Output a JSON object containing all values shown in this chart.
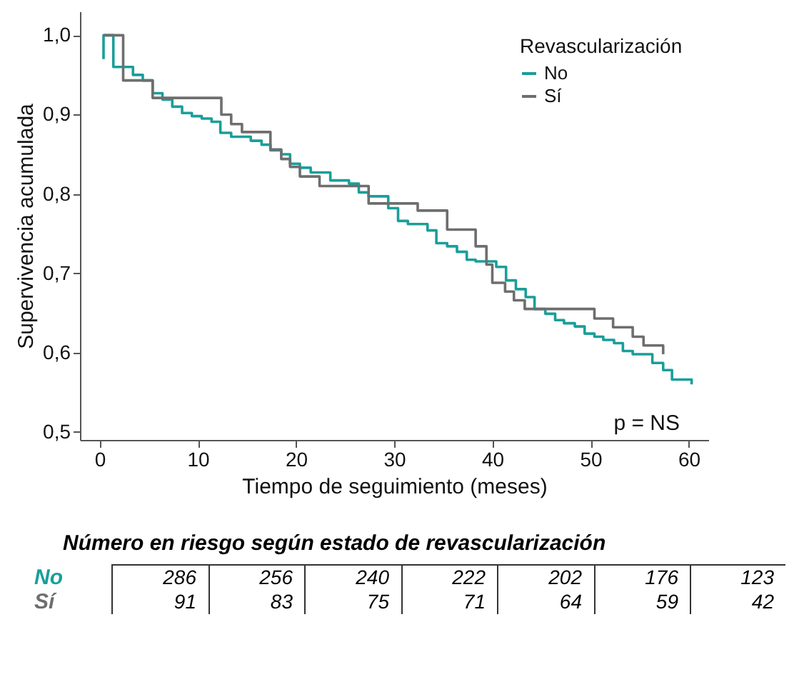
{
  "chart_data": {
    "type": "step",
    "xlabel": "Tiempo de seguimiento (meses)",
    "ylabel": "Supervivencia acumulada",
    "legend_title": "Revascularización",
    "legend": "top right",
    "xlim": [
      -2,
      62
    ],
    "xticks": [
      0,
      10,
      20,
      30,
      40,
      50,
      60
    ],
    "ylim": [
      0.49,
      1.03
    ],
    "yticks": [
      {
        "value": 0.5,
        "label": "0,5"
      },
      {
        "value": 0.6,
        "label": "0,6"
      },
      {
        "value": 0.7,
        "label": "0,7"
      },
      {
        "value": 0.8,
        "label": "0,8"
      },
      {
        "value": 0.9,
        "label": "0,9"
      },
      {
        "value": 1.0,
        "label": "1,0"
      }
    ],
    "series": [
      {
        "name": "No",
        "color": "#1a9e9a",
        "x": [
          0.4,
          0.4,
          1.4,
          3.4,
          4.4,
          5.4,
          6.4,
          7.4,
          8.4,
          9.4,
          10.4,
          11.4,
          12.3,
          13.4,
          15.4,
          16.5,
          17.4,
          18.5,
          19.4,
          20.4,
          21.5,
          23.5,
          25.4,
          26.4,
          27.4,
          29.4,
          30.4,
          31.4,
          33.4,
          34.3,
          35.4,
          36.4,
          37.4,
          38.3,
          40.4,
          41.4,
          42.4,
          43.4,
          44.3,
          45.4,
          46.4,
          47.3,
          48.4,
          49.4,
          50.4,
          51.3,
          52.4,
          53.3,
          54.3,
          56.3,
          57.4,
          58.3,
          60.3,
          60.3
        ],
        "values": [
          0.97,
          1.0,
          0.96,
          0.95,
          0.943,
          0.927,
          0.919,
          0.91,
          0.902,
          0.898,
          0.895,
          0.891,
          0.877,
          0.872,
          0.867,
          0.862,
          0.855,
          0.85,
          0.838,
          0.833,
          0.827,
          0.817,
          0.813,
          0.802,
          0.797,
          0.782,
          0.766,
          0.762,
          0.754,
          0.738,
          0.734,
          0.727,
          0.717,
          0.715,
          0.708,
          0.691,
          0.68,
          0.67,
          0.655,
          0.649,
          0.641,
          0.637,
          0.633,
          0.624,
          0.62,
          0.616,
          0.612,
          0.602,
          0.598,
          0.587,
          0.578,
          0.566,
          0.566,
          0.56
        ]
      },
      {
        "name": "Sí",
        "color": "#6e6e6e",
        "x": [
          0.4,
          2.4,
          5.4,
          12.4,
          13.4,
          14.5,
          17.4,
          18.5,
          19.4,
          20.4,
          22.4,
          27.4,
          32.4,
          35.4,
          38.3,
          39.4,
          40.0,
          41.3,
          42.2,
          43.3,
          50.4,
          52.3,
          54.3,
          55.4,
          57.4,
          57.4
        ],
        "values": [
          1.0,
          0.943,
          0.921,
          0.9,
          0.888,
          0.878,
          0.856,
          0.844,
          0.834,
          0.822,
          0.81,
          0.788,
          0.779,
          0.755,
          0.734,
          0.711,
          0.688,
          0.677,
          0.666,
          0.655,
          0.643,
          0.632,
          0.62,
          0.609,
          0.609,
          0.598
        ]
      }
    ],
    "annotations": [
      "p = NS",
      "Número en riesgo según estado de revascularización",
      "286",
      "256",
      "240",
      "222",
      "202",
      "176",
      "123",
      "91",
      "83",
      "75",
      "71",
      "64",
      "59",
      "42"
    ]
  }
}
